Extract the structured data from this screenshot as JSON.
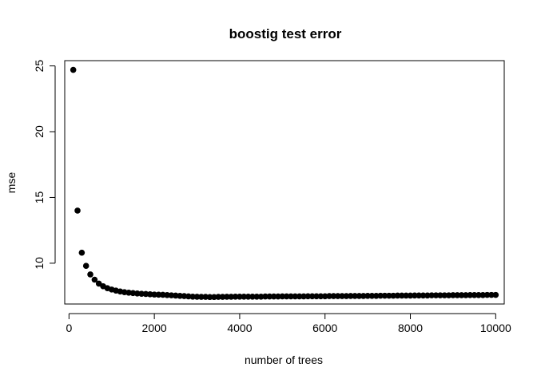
{
  "chart_data": {
    "type": "scatter",
    "title": "boostig test error",
    "xlabel": "number of trees",
    "ylabel": "mse",
    "xlim": [
      -100,
      10200
    ],
    "ylim": [
      6.9,
      25.4
    ],
    "xticks": [
      0,
      2000,
      4000,
      6000,
      8000,
      10000
    ],
    "xtick_labels": [
      "0",
      "2000",
      "4000",
      "6000",
      "8000",
      "10000"
    ],
    "yticks": [
      10,
      15,
      20,
      25
    ],
    "ytick_labels": [
      "10",
      "15",
      "20",
      "25"
    ],
    "grid": false,
    "marker": "filled-circle",
    "color": "#000000",
    "x": [
      100,
      200,
      300,
      400,
      500,
      600,
      700,
      800,
      900,
      1000,
      1100,
      1200,
      1300,
      1400,
      1500,
      1600,
      1700,
      1800,
      1900,
      2000,
      2100,
      2200,
      2300,
      2400,
      2500,
      2600,
      2700,
      2800,
      2900,
      3000,
      3100,
      3200,
      3300,
      3400,
      3500,
      3600,
      3700,
      3800,
      3900,
      4000,
      4100,
      4200,
      4300,
      4400,
      4500,
      4600,
      4700,
      4800,
      4900,
      5000,
      5100,
      5200,
      5300,
      5400,
      5500,
      5600,
      5700,
      5800,
      5900,
      6000,
      6100,
      6200,
      6300,
      6400,
      6500,
      6600,
      6700,
      6800,
      6900,
      7000,
      7100,
      7200,
      7300,
      7400,
      7500,
      7600,
      7700,
      7800,
      7900,
      8000,
      8100,
      8200,
      8300,
      8400,
      8500,
      8600,
      8700,
      8800,
      8900,
      9000,
      9100,
      9200,
      9300,
      9400,
      9500,
      9600,
      9700,
      9800,
      9900,
      10000
    ],
    "y": [
      24.7,
      14.0,
      10.8,
      9.8,
      9.15,
      8.75,
      8.45,
      8.25,
      8.1,
      8.0,
      7.92,
      7.85,
      7.8,
      7.76,
      7.73,
      7.7,
      7.68,
      7.66,
      7.64,
      7.62,
      7.61,
      7.6,
      7.58,
      7.56,
      7.54,
      7.52,
      7.5,
      7.48,
      7.46,
      7.45,
      7.44,
      7.44,
      7.43,
      7.43,
      7.44,
      7.44,
      7.45,
      7.45,
      7.46,
      7.46,
      7.46,
      7.46,
      7.46,
      7.46,
      7.46,
      7.47,
      7.47,
      7.47,
      7.47,
      7.48,
      7.48,
      7.48,
      7.48,
      7.48,
      7.48,
      7.49,
      7.49,
      7.49,
      7.49,
      7.49,
      7.5,
      7.5,
      7.5,
      7.5,
      7.5,
      7.51,
      7.51,
      7.51,
      7.51,
      7.52,
      7.52,
      7.52,
      7.53,
      7.53,
      7.53,
      7.53,
      7.54,
      7.54,
      7.54,
      7.54,
      7.55,
      7.55,
      7.55,
      7.55,
      7.56,
      7.56,
      7.56,
      7.56,
      7.56,
      7.57,
      7.57,
      7.57,
      7.57,
      7.58,
      7.58,
      7.58,
      7.58,
      7.59,
      7.59,
      7.59
    ]
  }
}
